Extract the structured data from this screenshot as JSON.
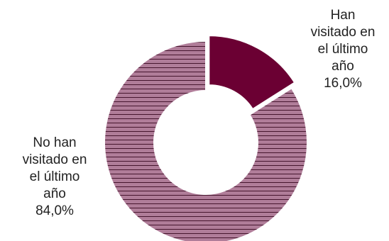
{
  "chart_data": {
    "type": "pie",
    "subtype": "donut",
    "categories": [
      "Han visitado en el último año",
      "No han visitado en el último año"
    ],
    "values": [
      16.0,
      84.0
    ],
    "data_labels": [
      {
        "lines": [
          "Han",
          "visitado en",
          "el último",
          "año"
        ],
        "value": "16,0%"
      },
      {
        "lines": [
          "No han",
          "visitado en",
          "el último",
          "año"
        ],
        "value": "84,0%"
      }
    ],
    "colors": [
      "#6b0033",
      "#b07d99"
    ],
    "hatch_color": "#3a0a22",
    "exploded": [
      true,
      false
    ],
    "legend": "none"
  }
}
